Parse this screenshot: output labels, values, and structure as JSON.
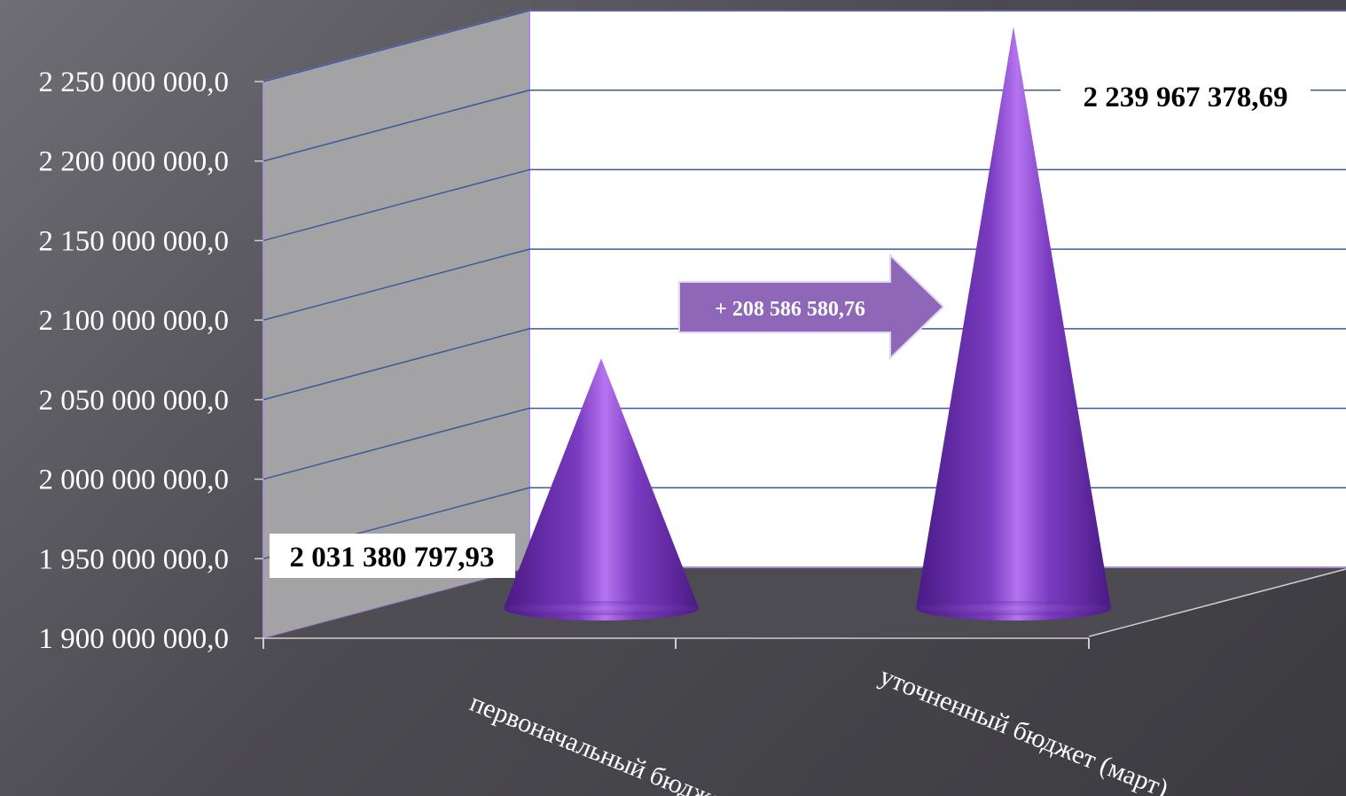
{
  "chart_data": {
    "type": "bar",
    "style": "3d-cone",
    "categories": [
      "первоначальный бюджет",
      "уточненный бюджет (март)"
    ],
    "values": [
      2031380797.93,
      2239967378.69
    ],
    "data_labels": [
      "2 031 380 797,93",
      "2 239 967 378,69"
    ],
    "yticks": [
      1900000000,
      1950000000,
      2000000000,
      2050000000,
      2100000000,
      2150000000,
      2200000000,
      2250000000
    ],
    "ytick_labels": [
      "1 900 000 000,0",
      "1 950 000 000,0",
      "2 000 000 000,0",
      "2 050 000 000,0",
      "2 100 000 000,0",
      "2 150 000 000,0",
      "2 200 000 000,0",
      "2 250 000 000,0"
    ],
    "ylim": [
      1900000000,
      2250000000
    ],
    "title": "",
    "xlabel": "",
    "ylabel": "",
    "grid": true,
    "legend": "none",
    "annotation": {
      "text": "+ 208 586 580,76"
    },
    "colors": {
      "cone": "#7a3bc0",
      "cone_highlight": "#b574ef",
      "cone_shadow": "#4a1a85",
      "grid": "#3d5a99",
      "frame": "#a98bd6",
      "arrow_fill": "#8f67b8",
      "arrow_stroke": "#e3d6f2",
      "side_wall": "#a3a3a5",
      "back_wall": "#ffffff",
      "floor": "#4f4e53"
    }
  }
}
